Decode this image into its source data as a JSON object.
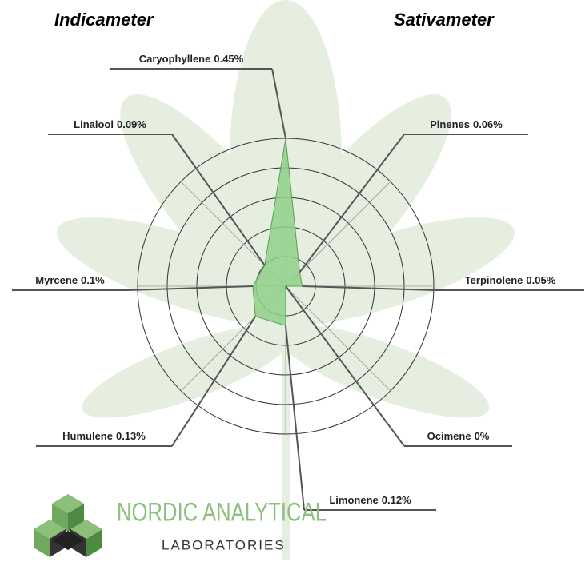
{
  "chart_data": {
    "type": "radar",
    "title_left": "Indicameter",
    "title_right": "Sativameter",
    "categories": [
      "Caryophyllene",
      "Pinenes",
      "Terpinolene",
      "Ocimene",
      "Limonene",
      "Humulene",
      "Myrcene",
      "Linalool"
    ],
    "values": [
      0.45,
      0.06,
      0.05,
      0,
      0.12,
      0.13,
      0.1,
      0.09
    ],
    "value_labels": [
      "0.45%",
      "0.06%",
      "0.05%",
      "0%",
      "0.12%",
      "0.13%",
      "0.1%",
      "0.09%"
    ],
    "color": "#8fd08a",
    "rlim": [
      0,
      0.45
    ],
    "rticks": [
      0.09,
      0.18,
      0.27,
      0.36,
      0.45
    ],
    "grid": true
  },
  "logo": {
    "name": "NORDIC ANALYTICAL",
    "subtitle": "LABORATORIES"
  }
}
